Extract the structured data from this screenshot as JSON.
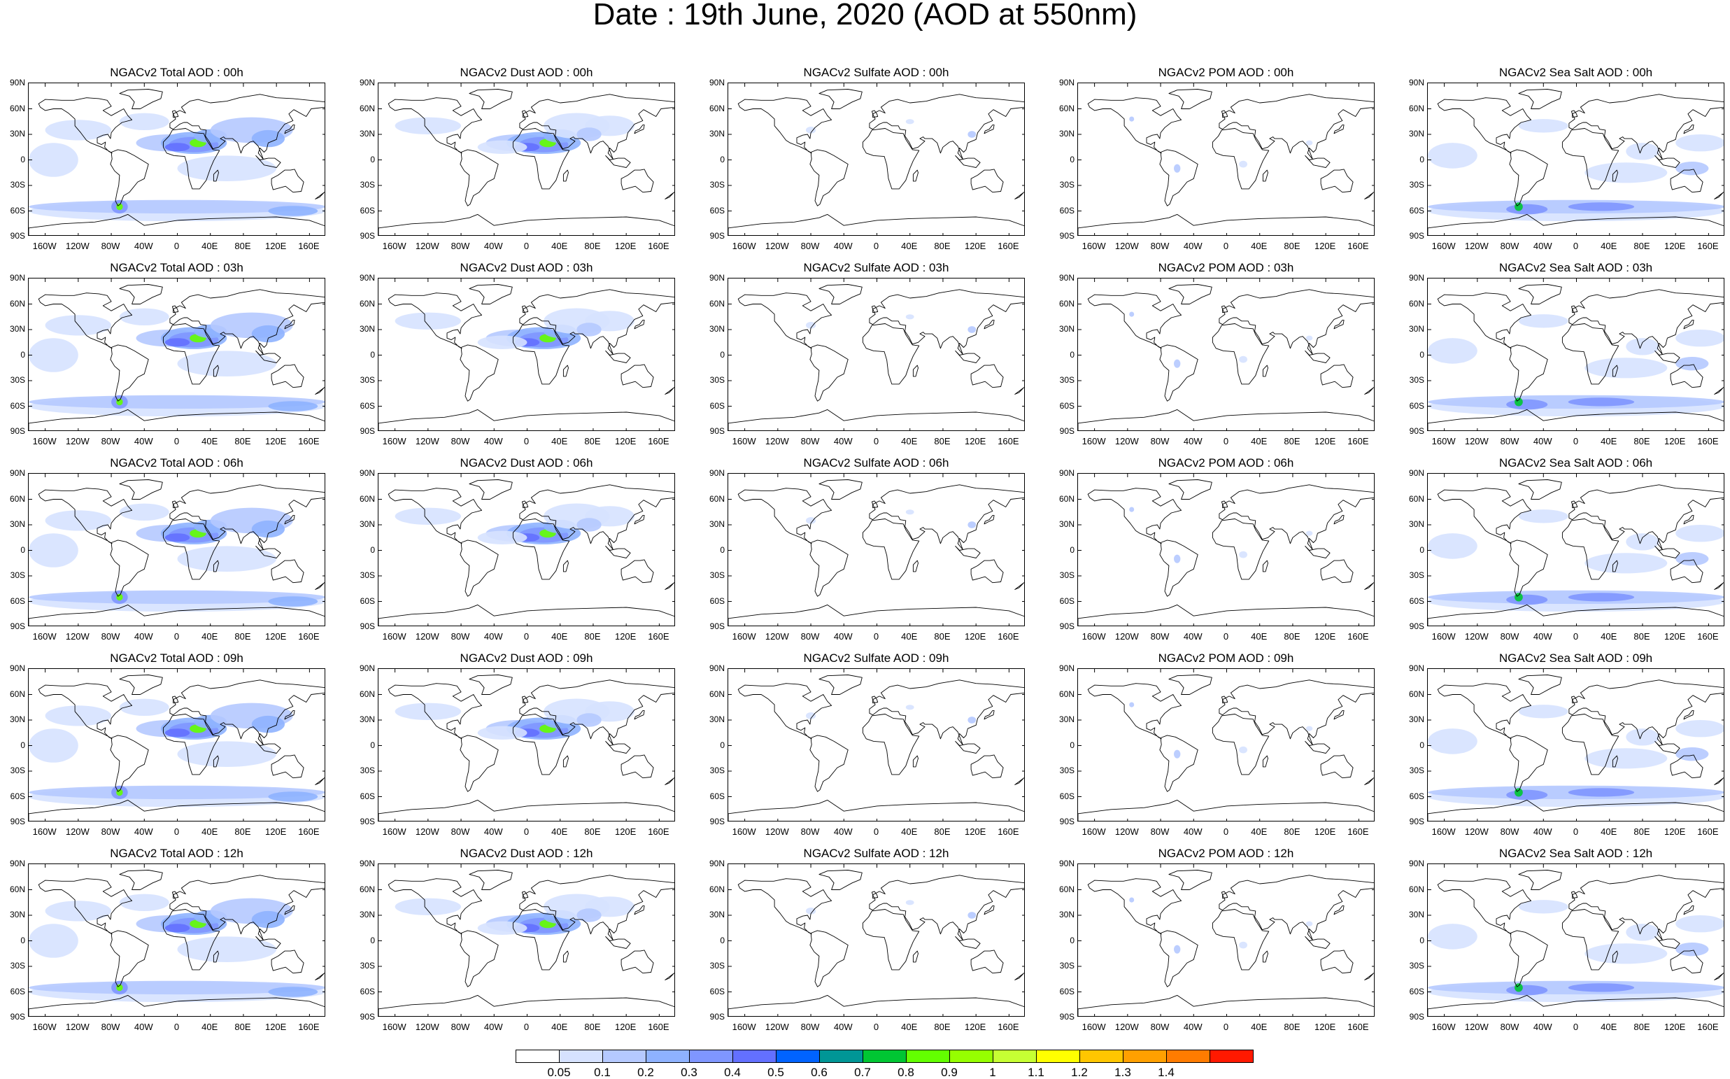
{
  "title": "Date : 19th June, 2020 (AOD at 550nm)",
  "lat_ticks": [
    "90N",
    "60N",
    "30N",
    "0",
    "30S",
    "60S",
    "90S"
  ],
  "lon_ticks": [
    "160W",
    "120W",
    "80W",
    "40W",
    "0",
    "40E",
    "80E",
    "120E",
    "160E"
  ],
  "colorbar": {
    "labels": [
      "0.05",
      "0.1",
      "0.2",
      "0.3",
      "0.4",
      "0.5",
      "0.6",
      "0.7",
      "0.8",
      "0.9",
      "1",
      "1.1",
      "1.2",
      "1.3",
      "1.4"
    ],
    "colors": [
      "#ffffff",
      "#d6e2ff",
      "#b5c9ff",
      "#8eb2ff",
      "#7f96ff",
      "#6370ff",
      "#0063ff",
      "#009696",
      "#00c633",
      "#63ff00",
      "#96ff00",
      "#c6ff33",
      "#ffff00",
      "#ffc600",
      "#ffa000",
      "#ff7c00",
      "#ff1900"
    ]
  },
  "columns": [
    {
      "id": "total",
      "style": "total"
    },
    {
      "id": "dust",
      "style": "dust"
    },
    {
      "id": "sulfate",
      "style": "sulfate"
    },
    {
      "id": "pom",
      "style": "pom"
    },
    {
      "id": "seasalt",
      "style": "seasalt"
    }
  ],
  "panel_titles": [
    [
      "NGACv2 Total AOD : 00h",
      "NGACv2 Dust AOD : 00h",
      "NGACv2 Sulfate AOD : 00h",
      "NGACv2 POM AOD : 00h",
      "NGACv2 Sea Salt AOD : 00h"
    ],
    [
      "NGACv2 Total AOD : 03h",
      "NGACv2 Dust AOD : 03h",
      "NGACv2 Sulfate AOD : 03h",
      "NGACv2 POM AOD : 03h",
      "NGACv2 Sea Salt AOD : 03h"
    ],
    [
      "NGACv2 Total AOD : 06h",
      "NGACv2 Dust AOD : 06h",
      "NGACv2 Sulfate AOD : 06h",
      "NGACv2 POM AOD : 06h",
      "NGACv2 Sea Salt AOD : 06h"
    ],
    [
      "NGACv2 Total AOD : 09h",
      "NGACv2 Dust AOD : 09h",
      "NGACv2 Sulfate AOD : 09h",
      "NGACv2 POM AOD : 09h",
      "NGACv2 Sea Salt  AOD : 09h"
    ],
    [
      "NGACv2 Total AOD  : 12h",
      "NGACv2 Dust AOD : 12h",
      "NGACv2 Sulfate AOD : 12h",
      "NGACv2 POM  AOD : 12h",
      "NGACv2 Sea Salt  AOD : 12h"
    ]
  ]
}
